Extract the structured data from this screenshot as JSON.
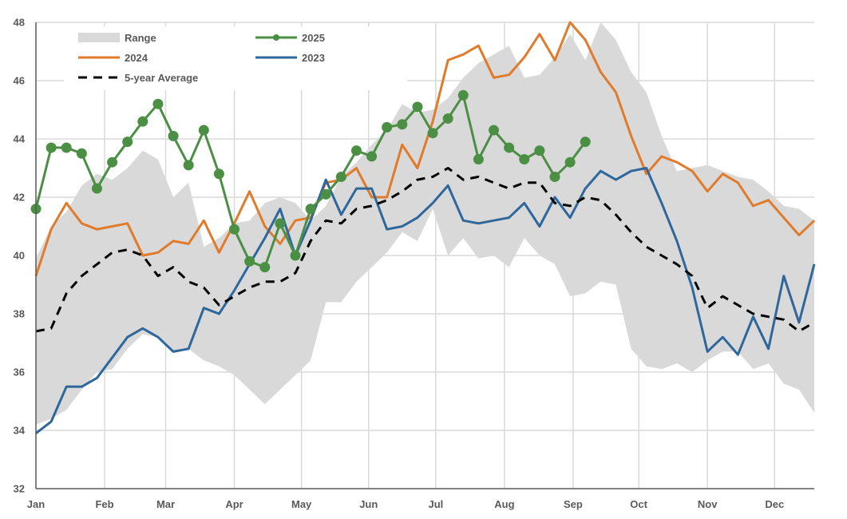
{
  "chart_data": {
    "type": "line",
    "title": "",
    "xlabel": "",
    "ylabel": "",
    "ylim": [
      32,
      48
    ],
    "y_ticks": [
      "32",
      "34",
      "36",
      "38",
      "40",
      "42",
      "44",
      "46",
      "48"
    ],
    "x_range_weeks": [
      1,
      52
    ],
    "months": [
      {
        "label": "Jan",
        "week": 1
      },
      {
        "label": "Feb",
        "week": 5.5
      },
      {
        "label": "Mar",
        "week": 9.5
      },
      {
        "label": "Apr",
        "week": 14
      },
      {
        "label": "May",
        "week": 18.4
      },
      {
        "label": "Jun",
        "week": 22.8
      },
      {
        "label": "Jul",
        "week": 27.2
      },
      {
        "label": "Aug",
        "week": 31.7
      },
      {
        "label": "Sep",
        "week": 36.2
      },
      {
        "label": "Oct",
        "week": 40.5
      },
      {
        "label": "Nov",
        "week": 45
      },
      {
        "label": "Dec",
        "week": 49.4
      }
    ],
    "grid": true,
    "legend_position": "top-left",
    "legend": [
      {
        "key": "range",
        "label": "Range"
      },
      {
        "key": "y2025",
        "label": "2025"
      },
      {
        "key": "y2024",
        "label": "2024"
      },
      {
        "key": "y2023",
        "label": "2023"
      },
      {
        "key": "avg",
        "label": "5-year Average"
      }
    ],
    "colors": {
      "range": "#d9d9d9",
      "y2025": "#4b8f45",
      "y2024": "#e07b2c",
      "y2023": "#2e679b",
      "avg": "#000000",
      "grid": "#d9d9d9",
      "axis": "#595959"
    },
    "range": {
      "name": "Range",
      "upper": [
        39.9,
        41.0,
        41.5,
        42.4,
        42.8,
        42.6,
        43.0,
        43.6,
        43.3,
        42.0,
        42.5,
        40.3,
        40.6,
        41.1,
        41.2,
        41.8,
        42.0,
        41.8,
        41.2,
        41.7,
        42.7,
        43.2,
        43.8,
        44.3,
        45.2,
        44.9,
        45.0,
        45.4,
        46.1,
        46.6,
        46.9,
        47.2,
        46.1,
        46.2,
        46.8,
        47.6,
        46.7,
        48.0,
        47.4,
        46.3,
        45.6,
        44.1,
        42.9,
        43.0,
        43.1,
        42.9,
        42.7,
        42.6,
        42.2,
        41.7,
        41.6,
        41.2
      ],
      "lower": [
        34.2,
        34.4,
        34.7,
        35.4,
        36.0,
        36.1,
        36.8,
        37.3,
        37.2,
        36.7,
        36.8,
        36.4,
        36.2,
        35.9,
        35.4,
        34.9,
        35.4,
        35.9,
        36.4,
        38.4,
        38.4,
        39.1,
        39.6,
        40.1,
        40.8,
        40.5,
        41.6,
        40.0,
        40.6,
        39.9,
        40.0,
        39.6,
        40.6,
        40.0,
        39.7,
        38.6,
        38.7,
        39.1,
        39.0,
        36.8,
        36.2,
        36.1,
        36.3,
        36.0,
        36.4,
        36.7,
        36.7,
        36.1,
        36.3,
        35.6,
        35.4,
        34.6
      ]
    },
    "series": [
      {
        "key": "y2024",
        "name": "2024",
        "values": [
          39.3,
          40.9,
          41.8,
          41.1,
          40.9,
          41.0,
          41.1,
          40.0,
          40.1,
          40.5,
          40.4,
          41.2,
          40.1,
          41.1,
          42.2,
          41.0,
          40.4,
          41.2,
          41.3,
          42.5,
          42.6,
          43.0,
          42.0,
          42.0,
          43.8,
          43.0,
          44.6,
          46.7,
          46.9,
          47.2,
          46.1,
          46.2,
          46.8,
          47.6,
          46.7,
          48.0,
          47.4,
          46.3,
          45.6,
          44.1,
          42.8,
          43.4,
          43.2,
          42.9,
          42.2,
          42.8,
          42.5,
          41.7,
          41.9,
          41.3,
          40.7,
          41.2
        ]
      },
      {
        "key": "y2023",
        "name": "2023",
        "values": [
          33.9,
          34.3,
          35.5,
          35.5,
          35.8,
          36.5,
          37.2,
          37.5,
          37.2,
          36.7,
          36.8,
          38.2,
          38.0,
          38.8,
          39.7,
          40.6,
          41.6,
          40.0,
          41.2,
          42.6,
          41.4,
          42.3,
          42.3,
          40.9,
          41.0,
          41.3,
          41.8,
          42.4,
          41.2,
          41.1,
          41.2,
          41.3,
          41.8,
          41.0,
          42.0,
          41.3,
          42.3,
          42.9,
          42.6,
          42.9,
          43.0,
          41.8,
          40.5,
          38.9,
          36.7,
          37.2,
          36.6,
          37.9,
          36.8,
          39.3,
          37.7,
          39.7
        ]
      },
      {
        "key": "y2025",
        "name": "2025",
        "values": [
          41.6,
          43.7,
          43.7,
          43.5,
          42.3,
          43.2,
          43.9,
          44.6,
          45.2,
          44.1,
          43.1,
          44.3,
          42.8,
          40.9,
          39.8,
          39.6,
          41.1,
          40.0,
          41.6,
          42.1,
          42.7,
          43.6,
          43.4,
          44.4,
          44.5,
          45.1,
          44.2,
          44.7,
          45.5,
          43.3,
          44.3,
          43.7,
          43.3,
          43.6,
          42.7,
          43.2,
          43.9
        ],
        "markers": true
      },
      {
        "key": "avg",
        "name": "5-year Average",
        "values": [
          37.4,
          37.5,
          38.7,
          39.3,
          39.7,
          40.1,
          40.2,
          40.0,
          39.3,
          39.6,
          39.1,
          38.9,
          38.3,
          38.6,
          38.9,
          39.1,
          39.1,
          39.4,
          40.5,
          41.2,
          41.1,
          41.6,
          41.7,
          41.9,
          42.2,
          42.6,
          42.7,
          43.0,
          42.6,
          42.7,
          42.5,
          42.3,
          42.5,
          42.5,
          41.8,
          41.7,
          42.0,
          41.9,
          41.4,
          40.8,
          40.3,
          40.0,
          39.7,
          39.3,
          38.2,
          38.6,
          38.3,
          38.0,
          37.9,
          37.8,
          37.4,
          37.7
        ],
        "dashed": true
      }
    ]
  }
}
